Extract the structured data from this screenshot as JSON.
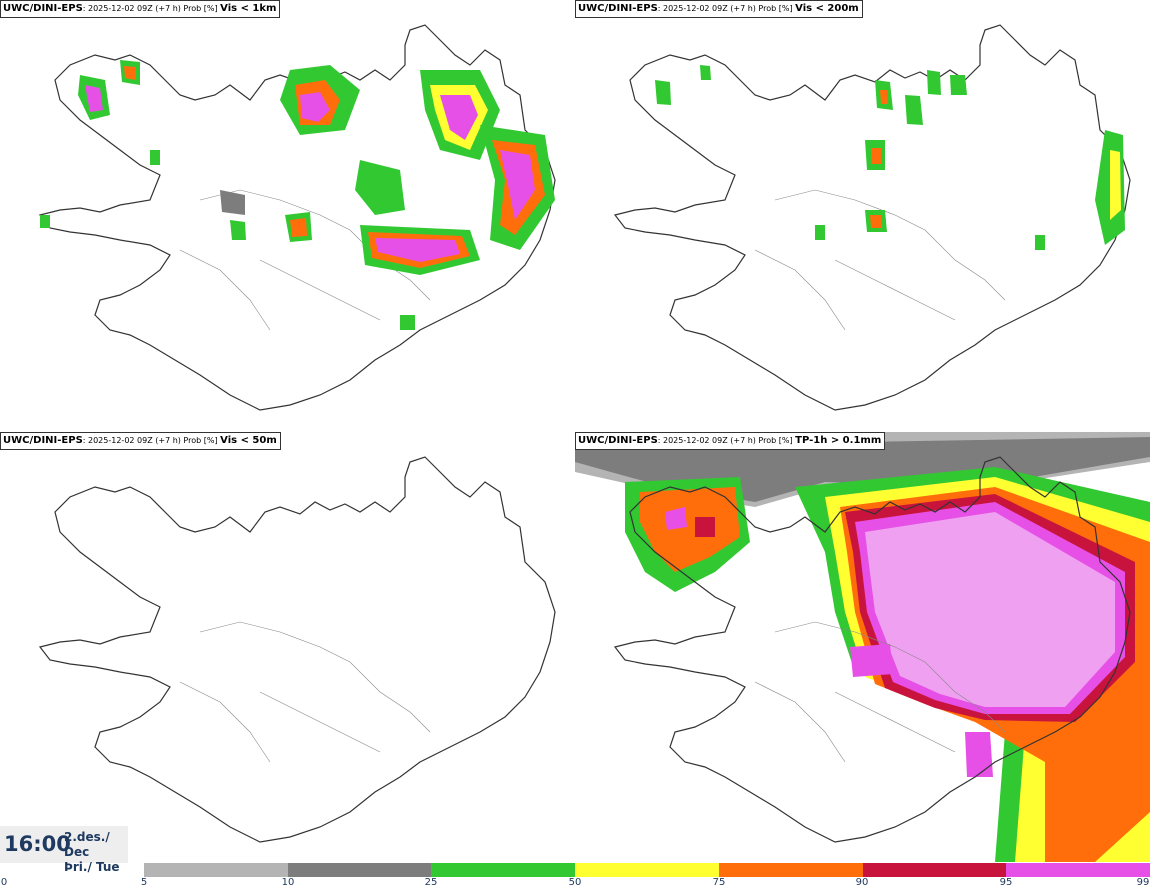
{
  "panels": [
    {
      "model": "UWC/DINI-EPS",
      "run": ": 2025-12-02 09Z (+7 h) Prob [%] ",
      "field": "Vis < 1km"
    },
    {
      "model": "UWC/DINI-EPS",
      "run": ": 2025-12-02 09Z (+7 h) Prob [%] ",
      "field": "Vis < 200m"
    },
    {
      "model": "UWC/DINI-EPS",
      "run": ": 2025-12-02 09Z (+7 h) Prob [%] ",
      "field": "Vis < 50m"
    },
    {
      "model": "UWC/DINI-EPS",
      "run": ": 2025-12-02 09Z (+7 h) Prob [%] ",
      "field": "TP-1h > 0.1mm"
    }
  ],
  "time": {
    "clock": "16:00",
    "date_line1": "2.des./ Dec",
    "date_line2": "Þri./ Tue"
  },
  "legend": {
    "ticks": [
      "0",
      "5",
      "10",
      "25",
      "50",
      "75",
      "90",
      "95",
      "99"
    ],
    "colors": [
      "#b4b4b4",
      "#7d7d7d",
      "#32c832",
      "#ffff32",
      "#ff6e0a",
      "#c8143c",
      "#e650e6"
    ]
  }
}
